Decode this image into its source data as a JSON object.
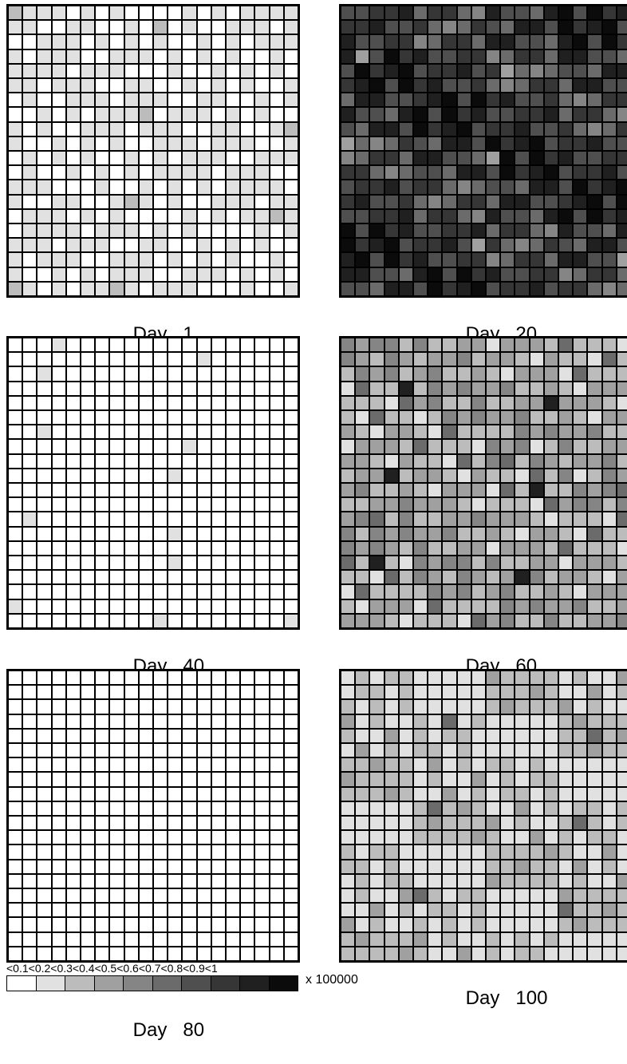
{
  "chart_data": {
    "type": "heatmap",
    "grid_size": [
      20,
      20
    ],
    "panels": [
      {
        "caption_prefix": "Day",
        "caption_value": "1",
        "level_pattern": [
          0,
          1,
          0,
          1,
          1,
          0,
          1,
          0,
          1,
          1,
          0,
          0,
          1,
          1,
          0,
          1,
          0,
          1,
          1,
          0
        ],
        "dominant_levels": [
          0,
          1
        ],
        "accent_level": 2
      },
      {
        "caption_prefix": "Day",
        "caption_value": "20",
        "level_pattern": [
          7,
          6,
          8,
          5,
          7,
          6,
          9,
          8,
          5,
          7,
          6,
          8,
          4,
          7,
          9,
          6,
          5,
          8,
          7,
          6
        ],
        "dominant_levels": [
          4,
          5,
          6,
          7,
          8,
          9
        ],
        "accent_level": 3
      },
      {
        "caption_prefix": "Day",
        "caption_value": "40",
        "level_pattern": [
          0,
          0,
          0,
          0,
          0,
          0,
          0,
          0,
          0,
          0,
          0,
          0,
          0,
          0,
          0,
          0,
          0,
          0,
          0,
          0
        ],
        "dominant_levels": [
          0
        ],
        "accent_level": 1
      },
      {
        "caption_prefix": "Day",
        "caption_value": "60",
        "level_pattern": [
          2,
          3,
          2,
          4,
          1,
          3,
          2,
          3,
          5,
          2,
          3,
          4,
          2,
          1,
          3,
          6,
          2,
          3,
          4,
          2
        ],
        "dominant_levels": [
          1,
          2,
          3,
          4,
          5
        ],
        "accent_level": 8
      },
      {
        "caption_prefix": "Day",
        "caption_value": "80",
        "level_pattern": [
          0,
          0,
          0,
          0,
          0,
          0,
          0,
          0,
          0,
          0,
          0,
          0,
          0,
          0,
          0,
          0,
          0,
          0,
          0,
          0
        ],
        "dominant_levels": [
          0
        ],
        "accent_level": 0
      },
      {
        "caption_prefix": "Day",
        "caption_value": "100",
        "level_pattern": [
          1,
          2,
          1,
          2,
          1,
          1,
          3,
          2,
          1,
          2,
          1,
          2,
          1,
          1,
          2,
          3,
          1,
          2,
          1,
          2
        ],
        "dominant_levels": [
          1,
          2,
          3
        ],
        "accent_level": 5
      }
    ],
    "legend": {
      "labels": [
        "<0.1",
        "<0.2",
        "<0.3",
        "<0.4",
        "<0.5",
        "<0.6",
        "<0.7",
        "<0.8",
        "<0.9",
        "<1"
      ],
      "unit": "x 100000",
      "colors": [
        "#ffffff",
        "#e1e1e1",
        "#bcbcbc",
        "#a0a0a0",
        "#858585",
        "#6b6b6b",
        "#4f4f4f",
        "#363636",
        "#202020",
        "#0b0b0b"
      ]
    }
  }
}
